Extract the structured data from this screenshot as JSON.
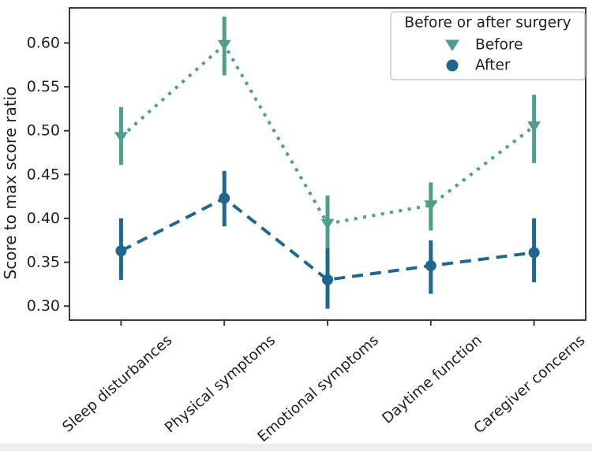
{
  "figure": {
    "background": "#ffffff",
    "bottom_strip_color": "#ededed"
  },
  "colors": {
    "axis": "#3a3a3a",
    "text": "#1f1f1f",
    "legend_border": "#c9c9c9",
    "legend_bg": "#ffffff"
  },
  "chart_data": {
    "type": "line",
    "title": "",
    "xlabel": "",
    "ylabel": "Score to max score ratio",
    "categories": [
      "Sleep disturbances",
      "Physical symptoms",
      "Emotional symptoms",
      "Daytime function",
      "Caregiver concerns"
    ],
    "series": [
      {
        "name": "Before",
        "color": "#4f9d8d",
        "marker": "triangle-down",
        "linestyle": "dotted",
        "values": [
          0.493,
          0.598,
          0.394,
          0.415,
          0.505
        ],
        "err_low": [
          0.461,
          0.563,
          0.366,
          0.386,
          0.463
        ],
        "err_high": [
          0.527,
          0.63,
          0.426,
          0.441,
          0.541
        ]
      },
      {
        "name": "After",
        "color": "#1f678f",
        "marker": "circle",
        "linestyle": "dashed",
        "values": [
          0.363,
          0.423,
          0.33,
          0.346,
          0.361
        ],
        "err_low": [
          0.33,
          0.391,
          0.297,
          0.314,
          0.327
        ],
        "err_high": [
          0.4,
          0.454,
          0.366,
          0.375,
          0.4
        ]
      }
    ],
    "yticks": [
      0.3,
      0.35,
      0.4,
      0.45,
      0.5,
      0.55,
      0.6
    ],
    "ytick_labels": [
      "0.30",
      "0.35",
      "0.40",
      "0.45",
      "0.50",
      "0.55",
      "0.60"
    ],
    "ylim": [
      0.284,
      0.64
    ],
    "grid": false,
    "legend": {
      "title": "Before or after surgery",
      "position": "upper right",
      "entries": [
        "Before",
        "After"
      ]
    }
  }
}
